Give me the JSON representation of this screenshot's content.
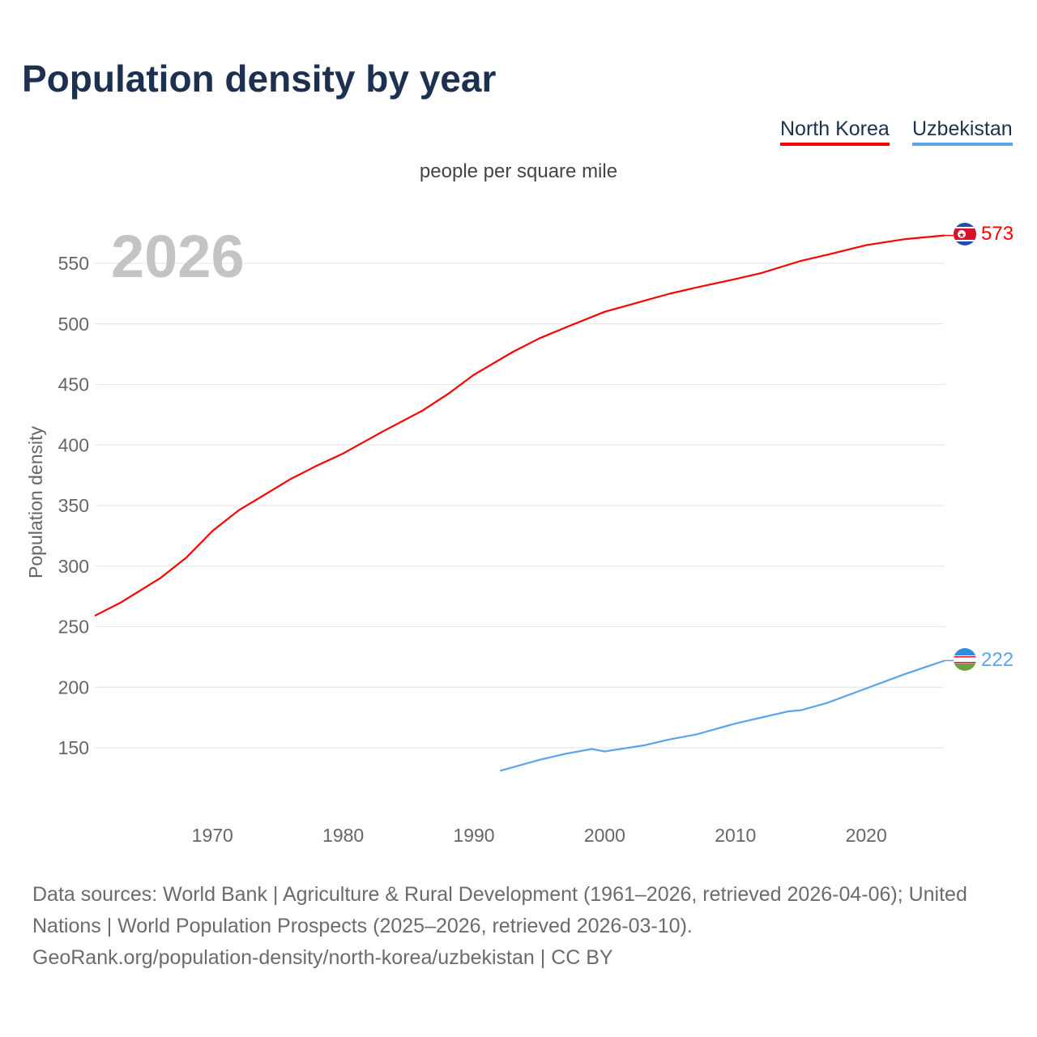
{
  "title": "Population density by year",
  "legend": [
    {
      "name": "North Korea",
      "color": "#ff0000"
    },
    {
      "name": "Uzbekistan",
      "color": "#5ba4ec"
    }
  ],
  "footer": {
    "sources": "Data sources: World Bank | Agriculture & Rural Development (1961–2026, retrieved 2026-04-06); United Nations | World Population Prospects (2025–2026, retrieved 2026-03-10).",
    "credit": "GeoRank.org/population-density/north-korea/uzbekistan | CC BY"
  },
  "chart_data": {
    "type": "line",
    "title": "Population density by year",
    "subtitle": "people per square mile",
    "ylabel": "Population density",
    "xlabel": "",
    "year_label": "2026",
    "xlim": [
      1961,
      2026
    ],
    "ylim": [
      100,
      600
    ],
    "xticks": [
      1970,
      1980,
      1990,
      2000,
      2010,
      2020
    ],
    "yticks": [
      150,
      200,
      250,
      300,
      350,
      400,
      450,
      500,
      550
    ],
    "grid": true,
    "legend_position": "top-right",
    "series": [
      {
        "name": "North Korea",
        "color": "#ff0000",
        "end_label": "573",
        "x": [
          1961,
          1963,
          1966,
          1968,
          1970,
          1972,
          1974,
          1976,
          1978,
          1980,
          1983,
          1986,
          1988,
          1990,
          1993,
          1995,
          1997,
          2000,
          2003,
          2005,
          2007,
          2010,
          2012,
          2015,
          2017,
          2020,
          2023,
          2026
        ],
        "y": [
          259,
          270,
          290,
          307,
          329,
          346,
          359,
          372,
          383,
          393,
          411,
          428,
          442,
          458,
          477,
          488,
          497,
          510,
          519,
          525,
          530,
          537,
          542,
          552,
          557,
          565,
          570,
          573
        ]
      },
      {
        "name": "Uzbekistan",
        "color": "#5ba4ec",
        "end_label": "222",
        "x": [
          1992,
          1995,
          1997,
          1999,
          2000,
          2003,
          2005,
          2007,
          2010,
          2012,
          2014,
          2015,
          2017,
          2020,
          2023,
          2026
        ],
        "y": [
          131,
          140,
          145,
          149,
          147,
          152,
          157,
          161,
          170,
          175,
          180,
          181,
          187,
          199,
          211,
          222
        ]
      }
    ]
  }
}
